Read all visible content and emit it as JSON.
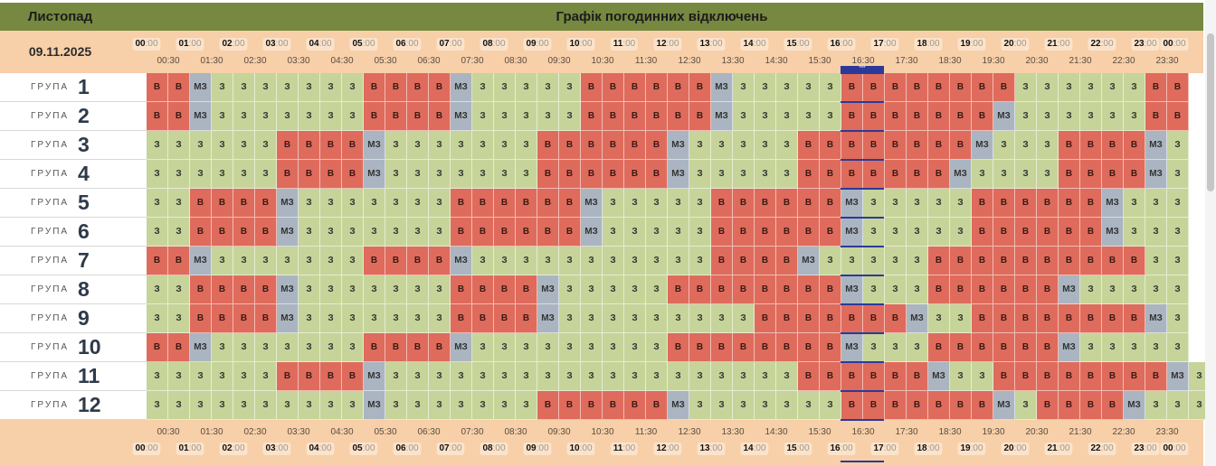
{
  "header": {
    "month": "Листопад",
    "title": "Графік погодинних відключень"
  },
  "date": "09.11.2025",
  "now_marker": "***",
  "group_word": "ГРУПА",
  "colors": {
    "on": "#c6d49a",
    "off": "#df6b5c",
    "maybe": "#aab5c1",
    "header": "#778840",
    "band": "#f7cfa8",
    "now": "#2b3a9a"
  },
  "hours": [
    "00",
    "01",
    "02",
    "03",
    "04",
    "05",
    "06",
    "07",
    "08",
    "09",
    "10",
    "11",
    "12",
    "13",
    "14",
    "15",
    "16",
    "17",
    "18",
    "19",
    "20",
    "21",
    "22",
    "23",
    "00"
  ],
  "minutes": ":00",
  "halfhours": [
    "00:30",
    "01:30",
    "02:30",
    "03:30",
    "04:30",
    "05:30",
    "06:30",
    "07:30",
    "08:30",
    "09:30",
    "10:30",
    "11:30",
    "12:30",
    "13:30",
    "14:30",
    "15:30",
    "16:30",
    "17:30",
    "18:30",
    "19:30",
    "20:30",
    "21:30",
    "22:30",
    "23:30"
  ],
  "legend": {
    "Z": "З",
    "V": "В",
    "M": "МЗ"
  },
  "groups": [
    {
      "number": "1",
      "slots": "VVMZZZZZZZVVVVMZZZZZVVVVVVMZZZZZVVVVVVVVZZZZZZVV"
    },
    {
      "number": "2",
      "slots": "VVMZZZZZZZVVVVMZZZZZVVVVVVMZZZZZVVVVVVVMZZZZZZVV"
    },
    {
      "number": "3",
      "slots": "ZZZZZZVVVVMZZZZZZZVVVVVVMZZZZZVVVVVVVVMZZZVVVVMZ"
    },
    {
      "number": "4",
      "slots": "ZZZZZZVVVVMZZZZZZZVVVVVVMZZZZZVVVVVVVMZZZZVVVVMZ"
    },
    {
      "number": "5",
      "slots": "ZZVVVVMZZZZZZZVVVVVVMZZZZZVVVVVVMZZZZZVVVVVVMZZZ"
    },
    {
      "number": "6",
      "slots": "ZZVVVVMZZZZZZZVVVVVVMZZZZZVVVVVVMZZZZZVVVVVVMZZZ"
    },
    {
      "number": "7",
      "slots": "VVMZZZZZZZVVVVMZZZZZZZZZZZVVVVMZZZZZVVVVVVVVVVZZ"
    },
    {
      "number": "8",
      "slots": "ZZVVVVMZZZZZZZVVVVMZZZZZVVVVVVVVMZZZVVVVVVMZZZZZ"
    },
    {
      "number": "9",
      "slots": "ZZVVVVMZZZZZZZVVVVMZZZZZZZZZVVVVVVVMZZVVVVVVVVMZ"
    },
    {
      "number": "10",
      "slots": "VVMZZZZZZZVVVVMZZZZZZZZZVVVVVVVVMZZZVVVVVVMZZZZZ"
    },
    {
      "number": "11",
      "slots": "ZZZZZZVVVVMZZZZZZZZZZZZZZZZZZZVVVVVVMZZVVVVVVVVMZ"
    },
    {
      "number": "12",
      "slots": "ZZZZZZZZZZMZZZZZZZVVVVVVMZZZZZZZVVVVVVVMZVVVVMZZZ"
    }
  ]
}
